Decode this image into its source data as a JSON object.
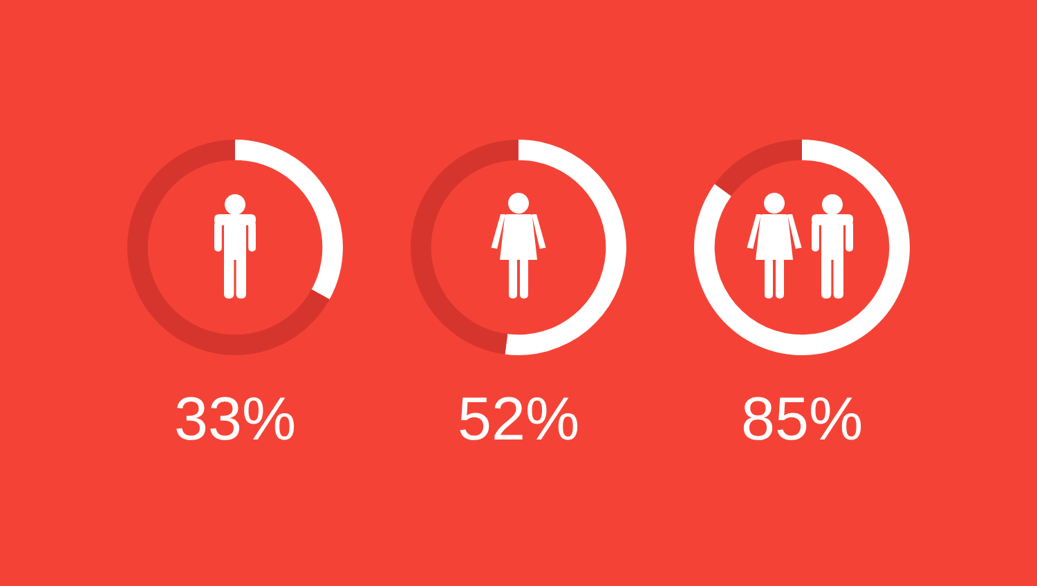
{
  "chart_data": [
    {
      "type": "donut",
      "categories": [
        null,
        null
      ],
      "values": [
        33,
        67
      ],
      "colors": [
        "#ffffff",
        "#d6352e"
      ],
      "annotations": [
        "33%"
      ]
    },
    {
      "type": "donut",
      "categories": [
        null,
        null
      ],
      "values": [
        52,
        48
      ],
      "colors": [
        "#ffffff",
        "#d6352e"
      ],
      "annotations": [
        "52%"
      ]
    },
    {
      "type": "donut",
      "categories": [
        null,
        null
      ],
      "values": [
        85,
        15
      ],
      "colors": [
        "#ffffff",
        "#d6352e"
      ],
      "annotations": [
        "85%"
      ]
    }
  ]
}
